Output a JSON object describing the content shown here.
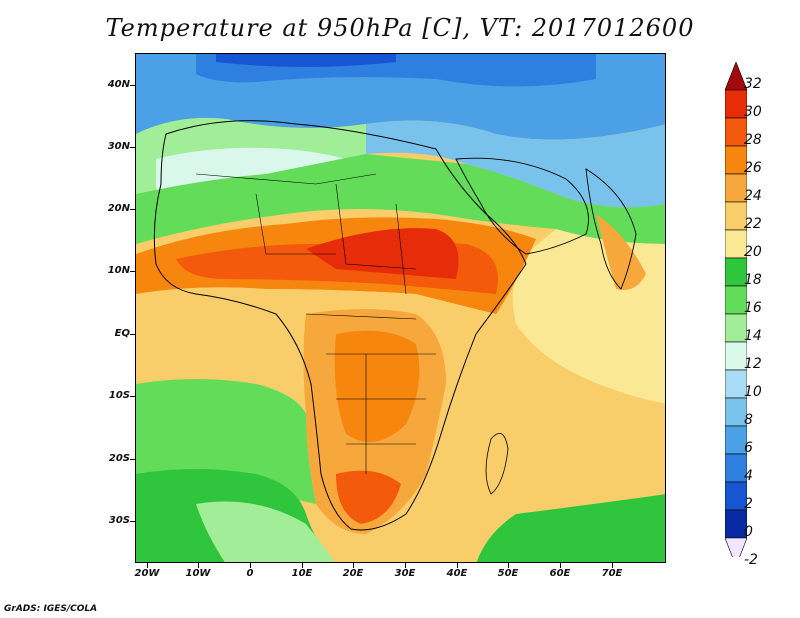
{
  "title": "Temperature at 950hPa [C], VT: 2017012600",
  "credit": "GrADS: IGES/COLA",
  "y_axis": [
    "40N",
    "30N",
    "20N",
    "10N",
    "EQ",
    "10S",
    "20S",
    "30S"
  ],
  "x_axis": [
    "20W",
    "10W",
    "0",
    "10E",
    "20E",
    "30E",
    "40E",
    "50E",
    "60E",
    "70E"
  ],
  "colorbar": {
    "labels": [
      "32",
      "30",
      "28",
      "26",
      "24",
      "22",
      "20",
      "18",
      "16",
      "14",
      "12",
      "10",
      "8",
      "6",
      "4",
      "2",
      "0",
      "-2"
    ],
    "colors": [
      "#a50a0a",
      "#e62c08",
      "#f35a0c",
      "#f7860f",
      "#f7a83d",
      "#f8cd6a",
      "#fbe894",
      "#2fc53c",
      "#62dc59",
      "#a2ee98",
      "#d9f8eb",
      "#a7dcf4",
      "#78c2ec",
      "#4ba0e6",
      "#2f7fe0",
      "#1756d2",
      "#082ba3",
      "#f0e6ff"
    ]
  },
  "map": {
    "type": "filled-contour",
    "variable": "Temperature at 950hPa (C)",
    "valid_time": "2017012600"
  }
}
